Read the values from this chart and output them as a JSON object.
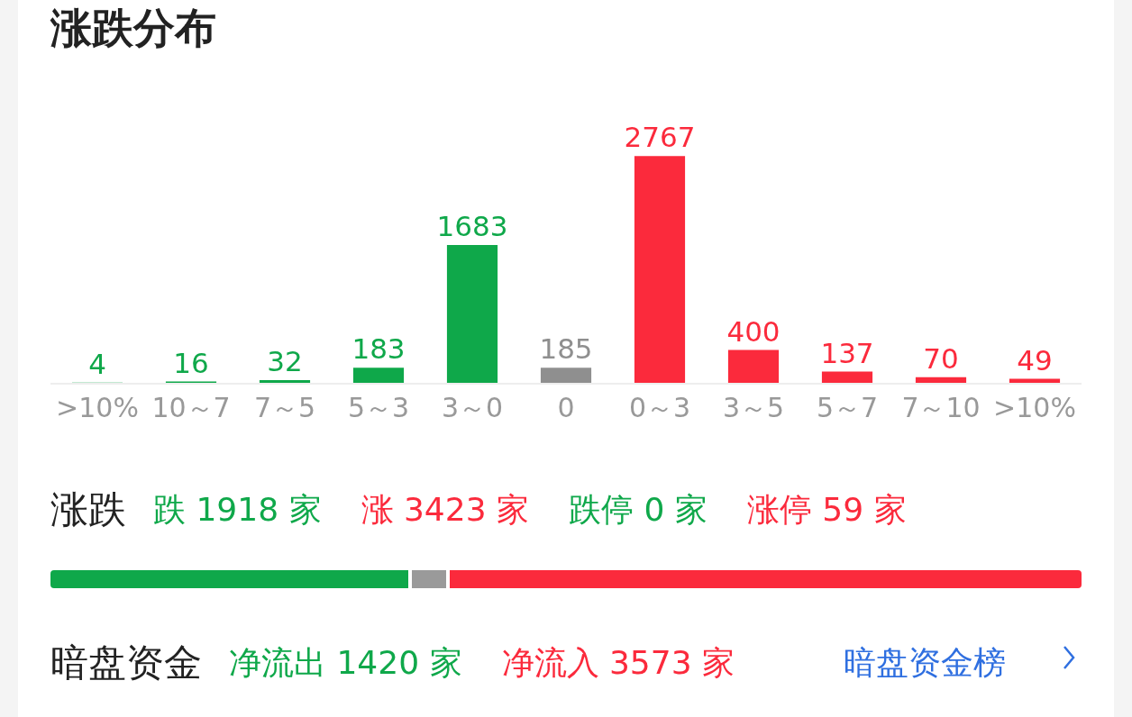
{
  "chart_data": {
    "type": "bar",
    "title": "涨跌分布",
    "categories": [
      ">10%",
      "10～7",
      "7～5",
      "5～3",
      "3～0",
      "0",
      "0～3",
      "3～5",
      "5～7",
      "7～10",
      ">10%"
    ],
    "values": [
      4,
      16,
      32,
      183,
      1683,
      185,
      2767,
      400,
      137,
      70,
      49
    ],
    "colors": [
      "#0fa84a",
      "#0fa84a",
      "#0fa84a",
      "#0fa84a",
      "#0fa84a",
      "#8f8f8f",
      "#fb2a3c",
      "#fb2a3c",
      "#fb2a3c",
      "#fb2a3c",
      "#fb2a3c"
    ],
    "data_labels": true,
    "tick_labels": "x",
    "annotations": [
      "涨跌",
      "跌 1918 家",
      "涨 3423 家",
      "跌停 0 家",
      "涨停 59 家",
      "暗盘资金",
      "净流出 1420 家",
      "净流入 3573 家",
      "暗盘资金榜"
    ]
  }
}
